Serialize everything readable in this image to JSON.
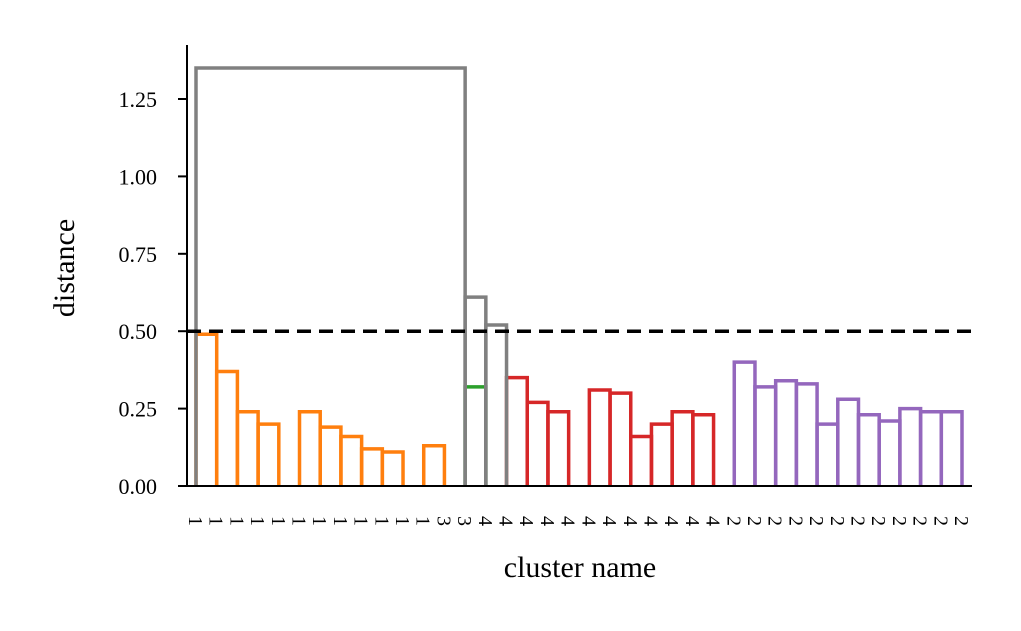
{
  "chart_data": {
    "type": "dendrogram",
    "xlabel": "cluster name",
    "ylabel": "distance",
    "ylim": [
      0,
      1.42
    ],
    "yticks": [
      "0.00",
      "0.25",
      "0.50",
      "0.75",
      "1.00",
      "1.25"
    ],
    "ytick_values": [
      0,
      0.25,
      0.5,
      0.75,
      1.0,
      1.25
    ],
    "threshold": 0.5,
    "threshold_style": "dashed",
    "leaf_labels": [
      "1",
      "1",
      "1",
      "1",
      "1",
      "1",
      "1",
      "1",
      "1",
      "1",
      "1",
      "1",
      "3",
      "3",
      "4",
      "4",
      "4",
      "4",
      "4",
      "4",
      "4",
      "4",
      "4",
      "4",
      "4",
      "4",
      "2",
      "2",
      "2",
      "2",
      "2",
      "2",
      "2",
      "2",
      "2",
      "2",
      "2",
      "2"
    ],
    "cluster_colors": {
      "1": "#ff7f0e",
      "3": "#2ca02c",
      "4": "#d62728",
      "2": "#9467bd",
      "above_threshold": "#808080"
    },
    "links": [
      {
        "left": 0,
        "right": 1,
        "height": 0.49,
        "color": "1"
      },
      {
        "left": 1,
        "right": 2,
        "height": 0.37,
        "color": "1"
      },
      {
        "left": 2,
        "right": 3,
        "height": 0.24,
        "color": "1"
      },
      {
        "left": 3,
        "right": 4,
        "height": 0.2,
        "color": "1"
      },
      {
        "left": 5,
        "right": 6,
        "height": 0.24,
        "color": "1"
      },
      {
        "left": 6,
        "right": 7,
        "height": 0.19,
        "color": "1"
      },
      {
        "left": 7,
        "right": 8,
        "height": 0.16,
        "color": "1"
      },
      {
        "left": 8,
        "right": 9,
        "height": 0.12,
        "color": "1"
      },
      {
        "left": 9,
        "right": 10,
        "height": 0.11,
        "color": "1"
      },
      {
        "left": 11,
        "right": 12,
        "height": 0.13,
        "color": "1"
      },
      {
        "left": 13,
        "right": 14,
        "height": 0.32,
        "color": "3"
      },
      {
        "left": 15,
        "right": 16,
        "height": 0.35,
        "color": "4"
      },
      {
        "left": 16,
        "right": 17,
        "height": 0.27,
        "color": "4"
      },
      {
        "left": 17,
        "right": 18,
        "height": 0.24,
        "color": "4"
      },
      {
        "left": 19,
        "right": 20,
        "height": 0.31,
        "color": "4"
      },
      {
        "left": 20,
        "right": 21,
        "height": 0.3,
        "color": "4"
      },
      {
        "left": 21,
        "right": 22,
        "height": 0.16,
        "color": "4"
      },
      {
        "left": 22,
        "right": 23,
        "height": 0.2,
        "color": "4"
      },
      {
        "left": 23,
        "right": 24,
        "height": 0.24,
        "color": "4"
      },
      {
        "left": 24,
        "right": 25,
        "height": 0.23,
        "color": "4"
      },
      {
        "left": 26,
        "right": 27,
        "height": 0.4,
        "color": "2"
      },
      {
        "left": 27,
        "right": 28,
        "height": 0.32,
        "color": "2"
      },
      {
        "left": 28,
        "right": 29,
        "height": 0.34,
        "color": "2"
      },
      {
        "left": 29,
        "right": 30,
        "height": 0.33,
        "color": "2"
      },
      {
        "left": 30,
        "right": 31,
        "height": 0.2,
        "color": "2"
      },
      {
        "left": 31,
        "right": 32,
        "height": 0.28,
        "color": "2"
      },
      {
        "left": 32,
        "right": 33,
        "height": 0.23,
        "color": "2"
      },
      {
        "left": 33,
        "right": 34,
        "height": 0.21,
        "color": "2"
      },
      {
        "left": 34,
        "right": 35,
        "height": 0.25,
        "color": "2"
      },
      {
        "left": 35,
        "right": 36,
        "height": 0.24,
        "color": "2"
      },
      {
        "left": 36,
        "right": 37,
        "height": 0.24,
        "color": "2"
      },
      {
        "left": 14,
        "right": 15,
        "height": 0.52,
        "color": "above_threshold"
      },
      {
        "left": 13,
        "right": 14,
        "height": 0.61,
        "color": "above_threshold"
      },
      {
        "left": 0,
        "right": 13,
        "height": 1.35,
        "color": "above_threshold"
      }
    ]
  }
}
